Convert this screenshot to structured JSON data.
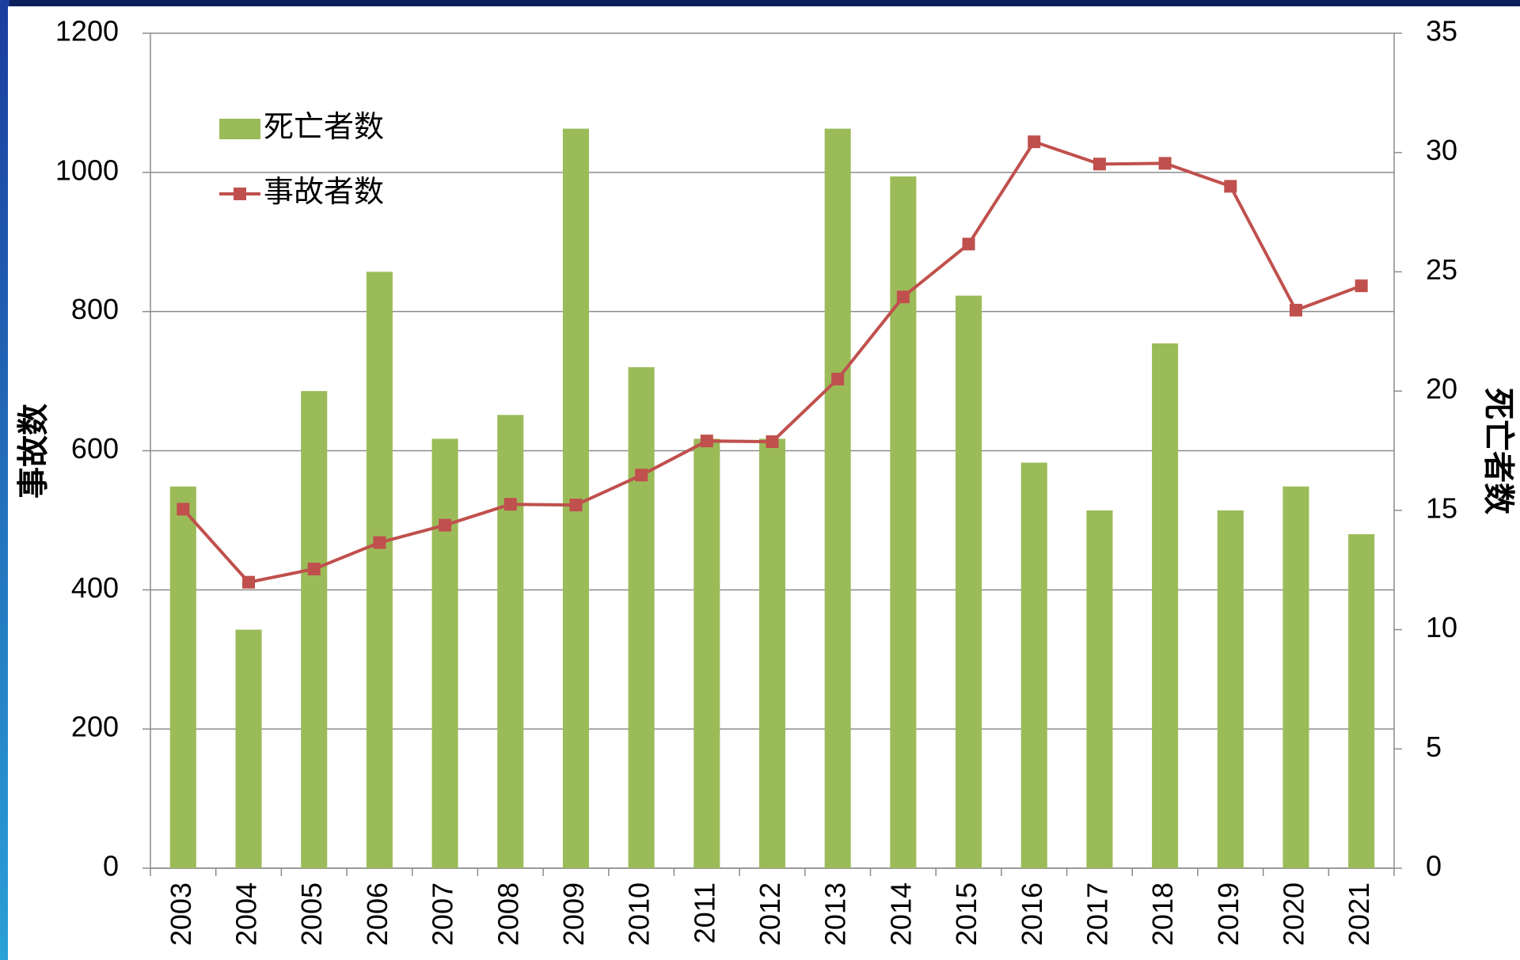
{
  "chart_data": {
    "type": "bar",
    "categories": [
      "2003",
      "2004",
      "2005",
      "2006",
      "2007",
      "2008",
      "2009",
      "2010",
      "2011",
      "2012",
      "2013",
      "2014",
      "2015",
      "2016",
      "2017",
      "2018",
      "2019",
      "2020",
      "2021"
    ],
    "series": [
      {
        "name": "死亡者数",
        "type": "bar",
        "axis": "y2",
        "color": "#9bbb59",
        "values": [
          16,
          10,
          20,
          25,
          18,
          19,
          31,
          21,
          18,
          18,
          31,
          29,
          24,
          17,
          15,
          22,
          15,
          16,
          14
        ]
      },
      {
        "name": "事故者数",
        "type": "line",
        "color": "#c0504d",
        "values": [
          516,
          411,
          430,
          468,
          493,
          523,
          522,
          565,
          614,
          613,
          703,
          821,
          897,
          1044,
          1012,
          1013,
          980,
          802,
          837
        ]
      }
    ],
    "y_label": "事故数",
    "y2_label": "死亡者数",
    "ylim": [
      0,
      1200
    ],
    "yticks": [
      0,
      200,
      400,
      600,
      800,
      1000,
      1200
    ],
    "y2lim": [
      0,
      35
    ],
    "y2ticks": [
      0,
      5,
      10,
      15,
      20,
      25,
      30,
      35
    ],
    "grid": true,
    "legend": "upper left"
  }
}
